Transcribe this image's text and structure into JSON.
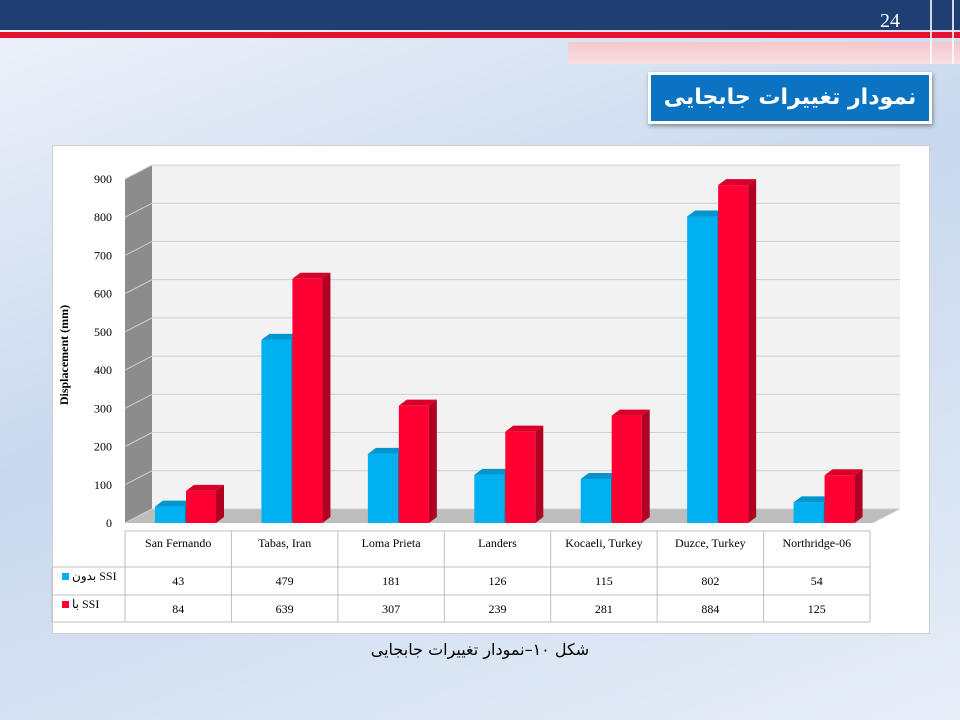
{
  "slide_number": "24",
  "title": "نمودار تغییرات جابجایی",
  "caption": "شکل ۱۰–نمودار تغییرات جابجایی",
  "chart_data": {
    "type": "bar",
    "ylabel": "Displacement (mm)",
    "categories": [
      "San Fernando",
      "Tabas, Iran",
      "Loma Prieta",
      "Landers",
      "Kocaeli, Turkey",
      "Duzce, Turkey",
      "Northridge-06"
    ],
    "series": [
      {
        "name": "بدون SSI",
        "color": "#00b0f0",
        "values": [
          43,
          479,
          181,
          126,
          115,
          802,
          54
        ]
      },
      {
        "name": "با SSI",
        "color": "#ff0033",
        "values": [
          84,
          639,
          307,
          239,
          281,
          884,
          125
        ]
      }
    ],
    "ylim": [
      0,
      900
    ],
    "yticks": [
      0,
      100,
      200,
      300,
      400,
      500,
      600,
      700,
      800,
      900
    ],
    "grid": true
  }
}
